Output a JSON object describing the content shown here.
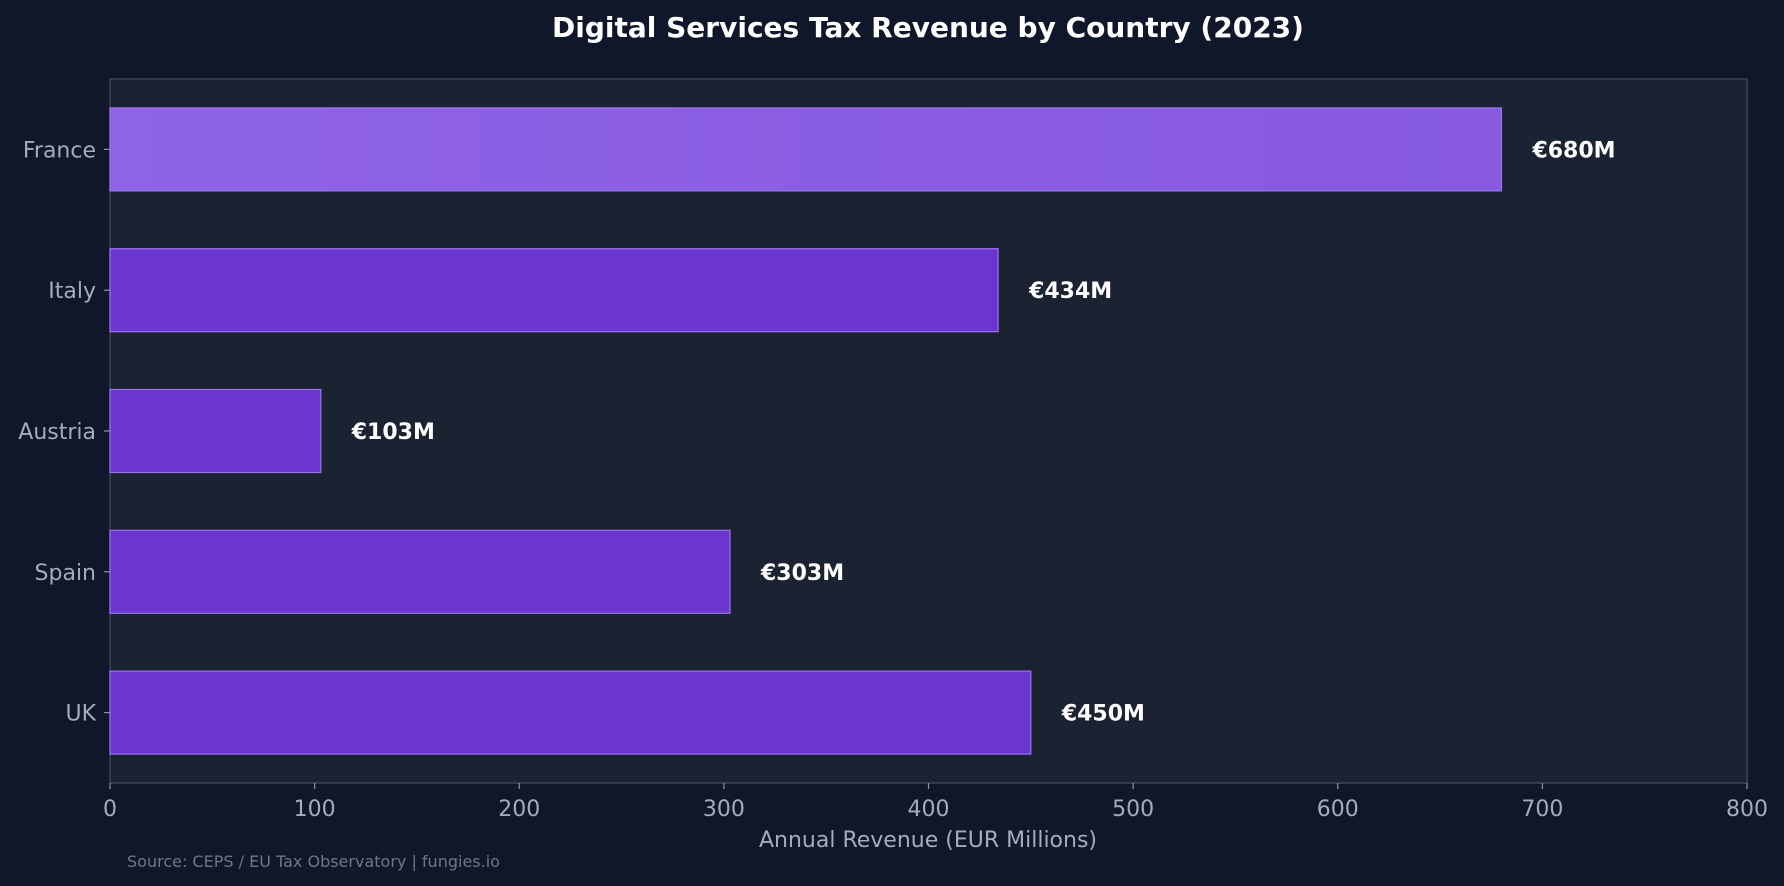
{
  "chart_data": {
    "type": "bar",
    "orientation": "horizontal",
    "title": "Digital Services Tax Revenue by Country (2023)",
    "xlabel": "Annual Revenue (EUR Millions)",
    "ylabel": "",
    "categories": [
      "France",
      "Italy",
      "Austria",
      "Spain",
      "UK"
    ],
    "values": [
      680,
      434,
      103,
      303,
      450
    ],
    "data_labels": [
      "€680M",
      "€434M",
      "€103M",
      "€303M",
      "€450M"
    ],
    "xlim": [
      0,
      800
    ],
    "xticks": [
      0,
      100,
      200,
      300,
      400,
      500,
      600,
      700,
      800
    ],
    "grid": false,
    "highlighted_category": "France"
  },
  "source_note": "Source: CEPS / EU Tax Observatory | fungies.io",
  "colors": {
    "background": "#11172a",
    "plot_background": "#1b2333",
    "bar": "#6b35d0",
    "bar_highlight": "#8b5fe3",
    "bar_edge": "#9a72ee",
    "axis": "#3b4558",
    "text_muted": "#a3acbd",
    "text_bright": "#ffffff"
  }
}
